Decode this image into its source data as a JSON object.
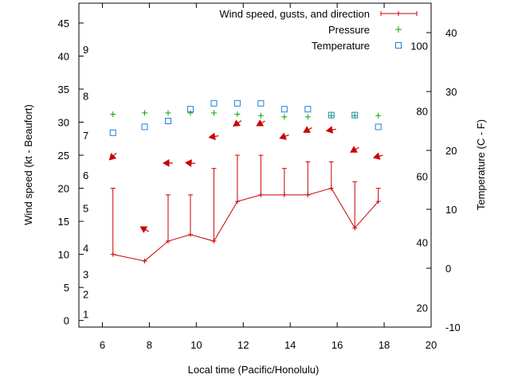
{
  "chart_data": {
    "type": "line",
    "title": "",
    "xlabel": "Local time (Pacific/Honolulu)",
    "ylabel": "Wind speed (kt - Beaufort)",
    "y2label": "Temperature (C - F)",
    "xlim": [
      5,
      20
    ],
    "ylim": [
      -1,
      48
    ],
    "y2lim": [
      -10,
      45
    ],
    "x_ticks": [
      6,
      8,
      10,
      12,
      14,
      16,
      18,
      20
    ],
    "y_ticks": [
      0,
      5,
      10,
      15,
      20,
      25,
      30,
      35,
      40,
      45
    ],
    "y2_ticks": [
      -10,
      0,
      10,
      20,
      30,
      40
    ],
    "beaufort_labels": [
      {
        "label": "1",
        "kt": 1
      },
      {
        "label": "2",
        "kt": 4
      },
      {
        "label": "3",
        "kt": 7
      },
      {
        "label": "4",
        "kt": 11
      },
      {
        "label": "5",
        "kt": 17
      },
      {
        "label": "6",
        "kt": 22
      },
      {
        "label": "7",
        "kt": 28
      },
      {
        "label": "8",
        "kt": 34
      },
      {
        "label": "9",
        "kt": 41
      }
    ],
    "fahrenheit_labels": [
      {
        "label": "20",
        "c": -6.7
      },
      {
        "label": "40",
        "c": 4.4
      },
      {
        "label": "60",
        "c": 15.6
      },
      {
        "label": "80",
        "c": 26.7
      },
      {
        "label": "100",
        "c": 37.8
      }
    ],
    "legend": [
      {
        "label": "Wind speed, gusts, and direction",
        "color": "#cc0000",
        "marker": "plus-errorbar"
      },
      {
        "label": "Pressure",
        "color": "#00aa00",
        "marker": "plus"
      },
      {
        "label": "Temperature",
        "color": "#1e7ed6",
        "marker": "square"
      }
    ],
    "legend_position": "top-right",
    "series": [
      {
        "name": "Wind speed, gusts, and direction",
        "color": "#cc0000",
        "x": [
          6.45,
          7.8,
          8.8,
          9.75,
          10.75,
          11.75,
          12.75,
          13.75,
          14.75,
          15.75,
          16.75,
          17.75
        ],
        "values": [
          10,
          9,
          12,
          13,
          12,
          18,
          19,
          19,
          19,
          20,
          14,
          18
        ],
        "gusts": [
          20,
          null,
          19,
          19,
          23,
          25,
          25,
          23,
          24,
          24,
          21,
          20
        ],
        "direction_deg": [
          45,
          120,
          90,
          95,
          80,
          55,
          60,
          70,
          60,
          80,
          60,
          75
        ]
      },
      {
        "name": "Pressure",
        "color": "#00aa00",
        "x": [
          6.45,
          7.8,
          8.8,
          9.75,
          10.75,
          11.75,
          12.75,
          13.75,
          14.75,
          15.75,
          16.75,
          17.75
        ],
        "values": [
          31.2,
          31.4,
          31.4,
          31.4,
          31.4,
          31.2,
          31.0,
          30.8,
          30.8,
          31.0,
          31.0,
          31.0
        ]
      },
      {
        "name": "Temperature",
        "color": "#1e7ed6",
        "x": [
          6.45,
          7.8,
          8.8,
          9.75,
          10.75,
          11.75,
          12.75,
          13.75,
          14.75,
          15.75,
          16.75,
          17.75
        ],
        "values": [
          23,
          24,
          25,
          27,
          28,
          28,
          28,
          27,
          27,
          26,
          26,
          24
        ]
      }
    ]
  }
}
